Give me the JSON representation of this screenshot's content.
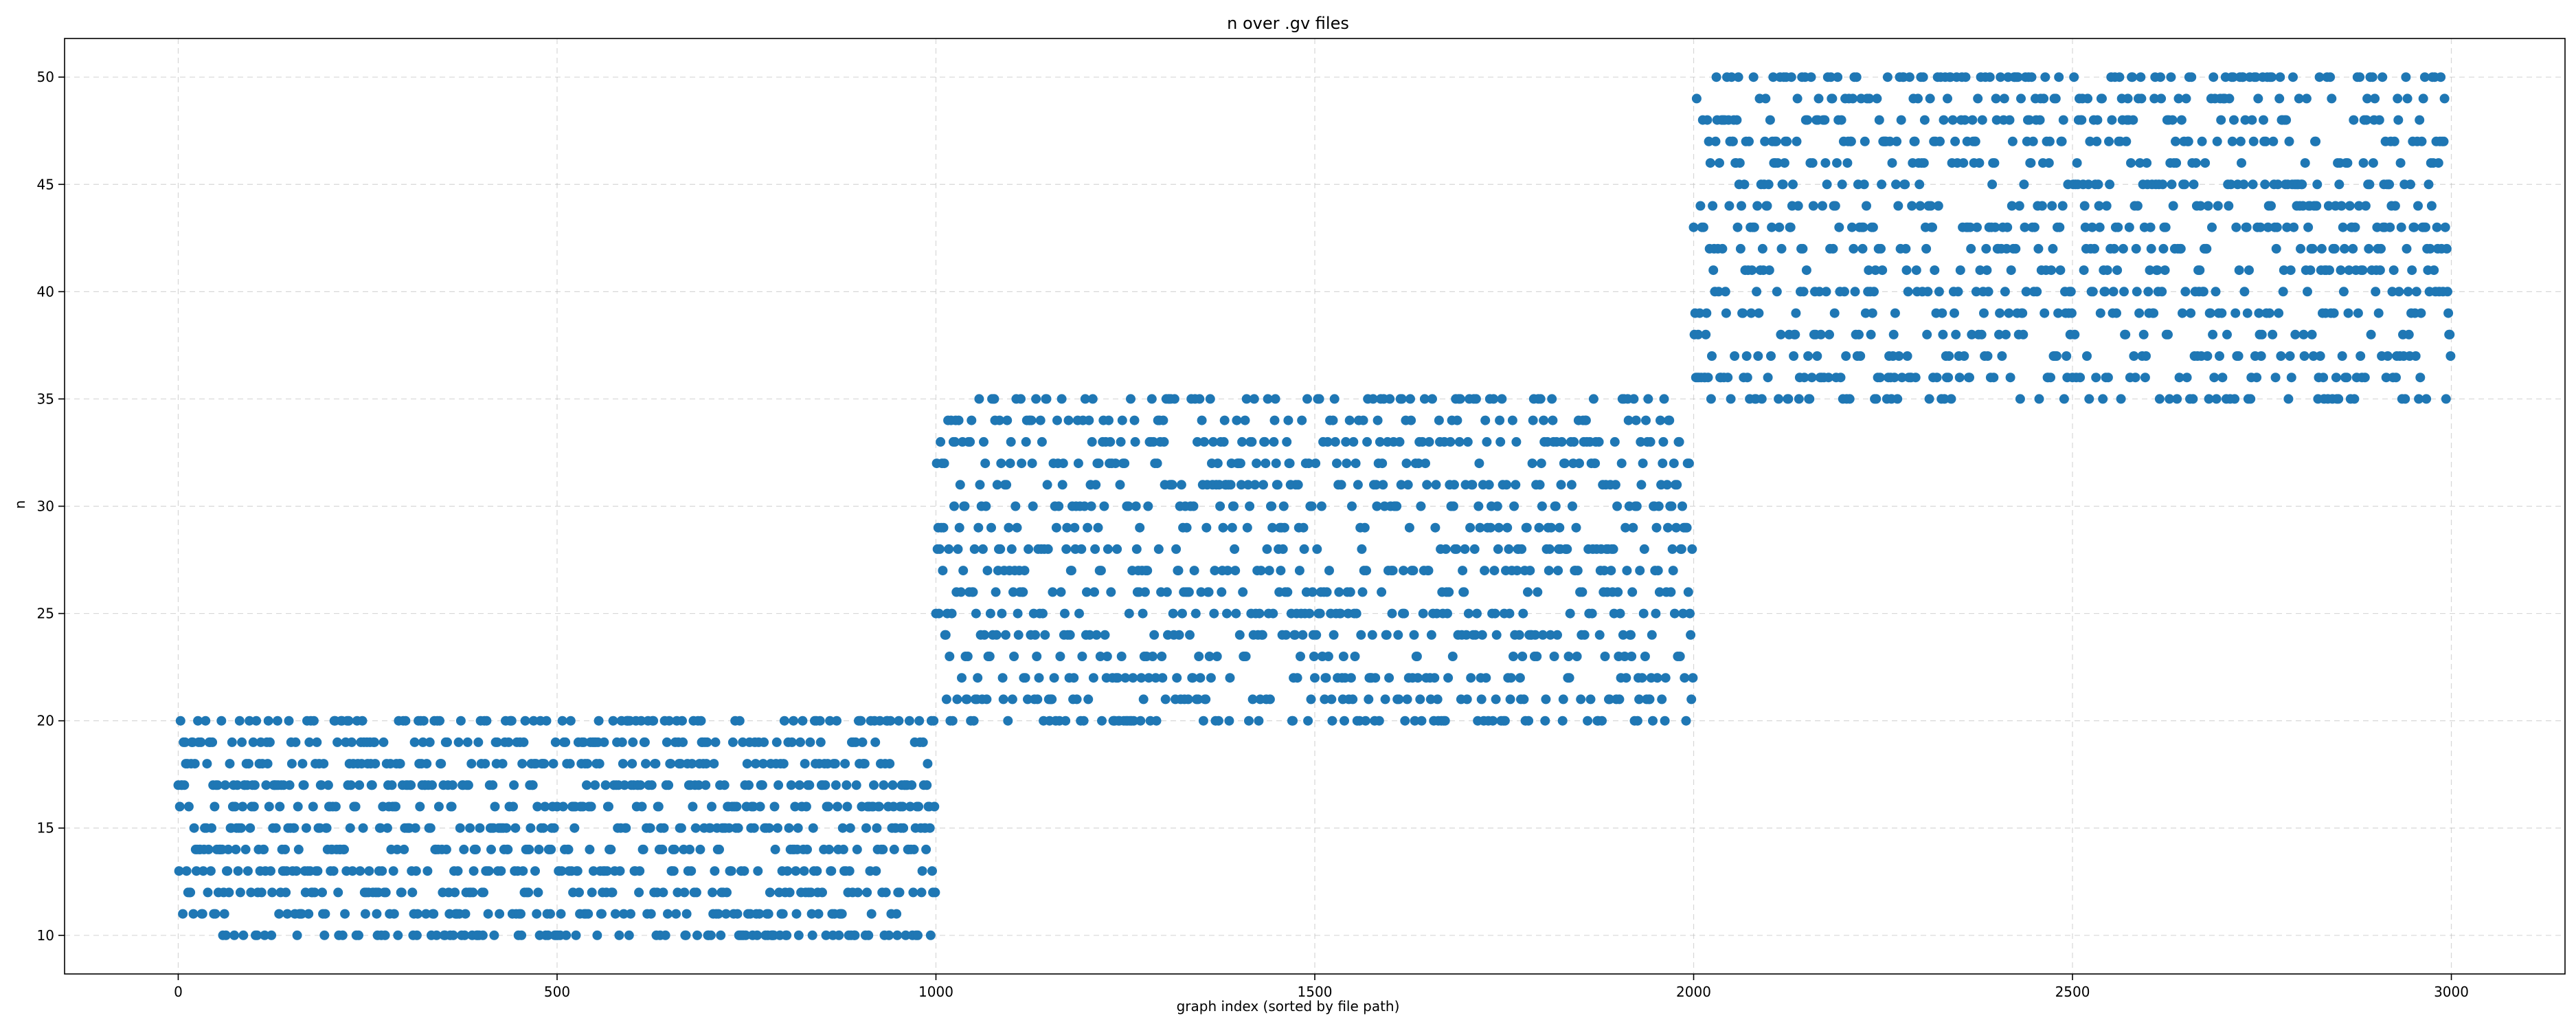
{
  "chart_data": {
    "type": "scatter",
    "title": "n over .gv files",
    "xlabel": "graph index (sorted by file path)",
    "ylabel": "n",
    "xlim": [
      -150,
      3150
    ],
    "ylim": [
      8.2,
      51.8
    ],
    "xticks": [
      0,
      500,
      1000,
      1500,
      2000,
      2500,
      3000
    ],
    "yticks": [
      10,
      15,
      20,
      25,
      30,
      35,
      40,
      45,
      50
    ],
    "grid": true,
    "grid_style": "dashed",
    "marker_color": "#1f77b4",
    "series": [
      {
        "marker": "circle",
        "groups": [
          {
            "x_range": [
              0,
              999
            ],
            "n_range": [
              10,
              20
            ],
            "count": 1000
          },
          {
            "x_range": [
              1000,
              1999
            ],
            "n_range": [
              20,
              35
            ],
            "count": 1000
          },
          {
            "x_range": [
              2000,
              2999
            ],
            "n_range": [
              35,
              50
            ],
            "count": 1000
          }
        ]
      }
    ]
  }
}
